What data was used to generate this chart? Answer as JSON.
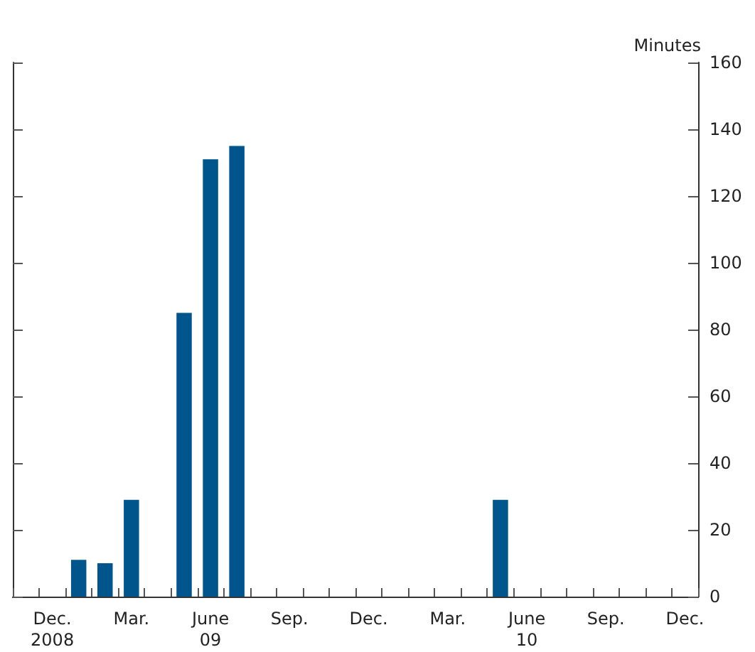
{
  "chart_data": {
    "type": "bar",
    "ylabel": "Minutes",
    "categories": [
      null,
      "Dec.\n2008",
      null,
      null,
      "Mar.",
      null,
      null,
      "June\n09",
      null,
      null,
      "Sep.",
      null,
      null,
      "Dec.",
      null,
      null,
      "Mar.",
      null,
      null,
      "June\n10",
      null,
      null,
      "Sep.",
      null,
      null,
      "Dec."
    ],
    "series": [
      {
        "color": "#00568c",
        "values": [
          null,
          null,
          11,
          10,
          29,
          null,
          85,
          131,
          135,
          null,
          null,
          null,
          null,
          null,
          null,
          null,
          null,
          null,
          29,
          null,
          null,
          null,
          null,
          null,
          null,
          null
        ]
      }
    ],
    "ylim": [
      0,
      160
    ],
    "yticks": [
      0,
      20,
      40,
      60,
      80,
      100,
      120,
      140,
      160
    ],
    "grid": false
  }
}
